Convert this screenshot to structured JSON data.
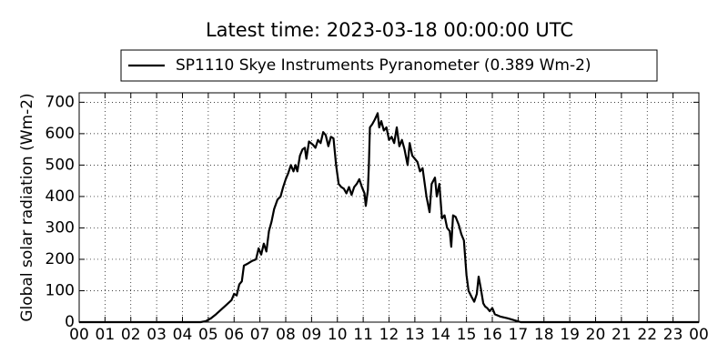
{
  "chart_data": {
    "type": "line",
    "title": "Latest time: 2023-03-18 00:00:00 UTC",
    "ylabel": "Global solar radiation (Wm-2)",
    "xlim": [
      0,
      24
    ],
    "ylim": [
      0,
      730
    ],
    "xticks": [
      {
        "value": 0,
        "label": "00"
      },
      {
        "value": 1,
        "label": "01"
      },
      {
        "value": 2,
        "label": "02"
      },
      {
        "value": 3,
        "label": "03"
      },
      {
        "value": 4,
        "label": "04"
      },
      {
        "value": 5,
        "label": "05"
      },
      {
        "value": 6,
        "label": "06"
      },
      {
        "value": 7,
        "label": "07"
      },
      {
        "value": 8,
        "label": "08"
      },
      {
        "value": 9,
        "label": "09"
      },
      {
        "value": 10,
        "label": "10"
      },
      {
        "value": 11,
        "label": "11"
      },
      {
        "value": 12,
        "label": "12"
      },
      {
        "value": 13,
        "label": "13"
      },
      {
        "value": 14,
        "label": "14"
      },
      {
        "value": 15,
        "label": "15"
      },
      {
        "value": 16,
        "label": "16"
      },
      {
        "value": 17,
        "label": "17"
      },
      {
        "value": 18,
        "label": "18"
      },
      {
        "value": 19,
        "label": "19"
      },
      {
        "value": 20,
        "label": "20"
      },
      {
        "value": 21,
        "label": "21"
      },
      {
        "value": 22,
        "label": "22"
      },
      {
        "value": 23,
        "label": "23"
      },
      {
        "value": 24,
        "label": "00"
      }
    ],
    "yticks": [
      0,
      100,
      200,
      300,
      400,
      500,
      600,
      700
    ],
    "grid": true,
    "legend": "top",
    "x": [
      0,
      4.7,
      4.9,
      5.1,
      5.3,
      5.5,
      5.7,
      5.9,
      6.0,
      6.1,
      6.2,
      6.3,
      6.38,
      6.5,
      6.7,
      6.85,
      6.95,
      7.05,
      7.15,
      7.25,
      7.35,
      7.45,
      7.55,
      7.68,
      7.8,
      7.9,
      8.0,
      8.1,
      8.2,
      8.3,
      8.38,
      8.45,
      8.55,
      8.65,
      8.74,
      8.8,
      8.9,
      9.05,
      9.15,
      9.25,
      9.35,
      9.45,
      9.55,
      9.65,
      9.75,
      9.85,
      9.95,
      10.05,
      10.15,
      10.25,
      10.35,
      10.45,
      10.55,
      10.65,
      10.75,
      10.85,
      10.95,
      11.05,
      11.1,
      11.18,
      11.22,
      11.26,
      11.35,
      11.45,
      11.56,
      11.62,
      11.7,
      11.8,
      11.9,
      12.0,
      12.1,
      12.2,
      12.3,
      12.4,
      12.5,
      12.6,
      12.72,
      12.8,
      12.9,
      13.0,
      13.1,
      13.2,
      13.3,
      13.45,
      13.57,
      13.65,
      13.78,
      13.85,
      13.95,
      14.05,
      14.15,
      14.25,
      14.35,
      14.41,
      14.48,
      14.58,
      14.7,
      14.8,
      14.9,
      15.0,
      15.08,
      15.2,
      15.3,
      15.4,
      15.47,
      15.55,
      15.65,
      15.72,
      15.8,
      15.9,
      16.0,
      16.1,
      16.3,
      16.6,
      16.9,
      17.1,
      24
    ],
    "series": [
      {
        "name": "SP1110 Skye Instruments Pyranometer (0.389 Wm-2)",
        "color": "#000000",
        "values": [
          0,
          0,
          3,
          12,
          25,
          40,
          55,
          70,
          90,
          85,
          120,
          130,
          180,
          185,
          195,
          200,
          235,
          215,
          250,
          225,
          290,
          320,
          360,
          390,
          400,
          430,
          455,
          475,
          500,
          480,
          500,
          480,
          530,
          550,
          555,
          520,
          575,
          565,
          555,
          580,
          570,
          605,
          595,
          560,
          590,
          585,
          500,
          440,
          430,
          425,
          410,
          430,
          405,
          430,
          440,
          455,
          430,
          410,
          370,
          420,
          500,
          620,
          630,
          645,
          665,
          620,
          640,
          610,
          620,
          580,
          590,
          570,
          620,
          560,
          580,
          550,
          500,
          570,
          530,
          520,
          510,
          480,
          490,
          400,
          350,
          440,
          460,
          400,
          440,
          330,
          340,
          300,
          290,
          240,
          340,
          335,
          310,
          280,
          260,
          150,
          100,
          80,
          65,
          90,
          145,
          110,
          60,
          50,
          45,
          35,
          45,
          25,
          18,
          12,
          5,
          0,
          0
        ]
      }
    ]
  }
}
